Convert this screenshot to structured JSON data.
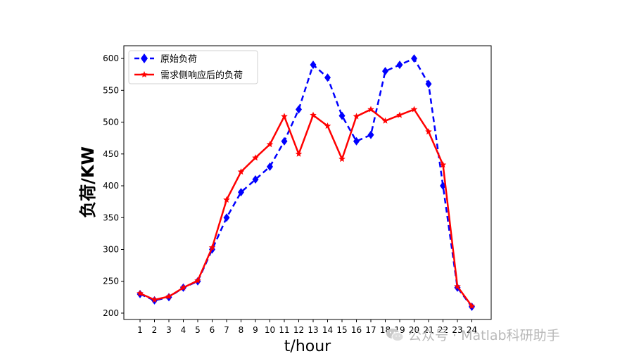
{
  "chart_data": {
    "type": "line",
    "title": "",
    "xlabel": "t/hour",
    "ylabel": "负荷/KW",
    "categories": [
      1,
      2,
      3,
      4,
      5,
      6,
      7,
      8,
      9,
      10,
      11,
      12,
      13,
      14,
      15,
      16,
      17,
      18,
      19,
      20,
      21,
      22,
      23,
      24
    ],
    "ylim": [
      190,
      620
    ],
    "yticks": [
      200,
      250,
      300,
      350,
      400,
      450,
      500,
      550,
      600
    ],
    "grid": false,
    "legend_position": "top-left",
    "series": [
      {
        "name": "原始负荷",
        "color": "#0000ff",
        "line_style": "dashed",
        "marker": "diamond",
        "values": [
          230,
          220,
          225,
          240,
          250,
          300,
          350,
          390,
          410,
          430,
          470,
          520,
          590,
          570,
          510,
          470,
          480,
          580,
          590,
          600,
          560,
          400,
          240,
          210
        ]
      },
      {
        "name": "需求侧响应后的负荷",
        "color": "#ff0000",
        "line_style": "solid",
        "marker": "star",
        "values": [
          231,
          221,
          226,
          240,
          251,
          303,
          378,
          422,
          444,
          465,
          509,
          450,
          511,
          494,
          442,
          509,
          520,
          502,
          511,
          520,
          485,
          433,
          242,
          211
        ]
      }
    ]
  },
  "watermark": {
    "text": "公众号 · Matlab科研助手",
    "icon": "wechat-logo-icon"
  }
}
